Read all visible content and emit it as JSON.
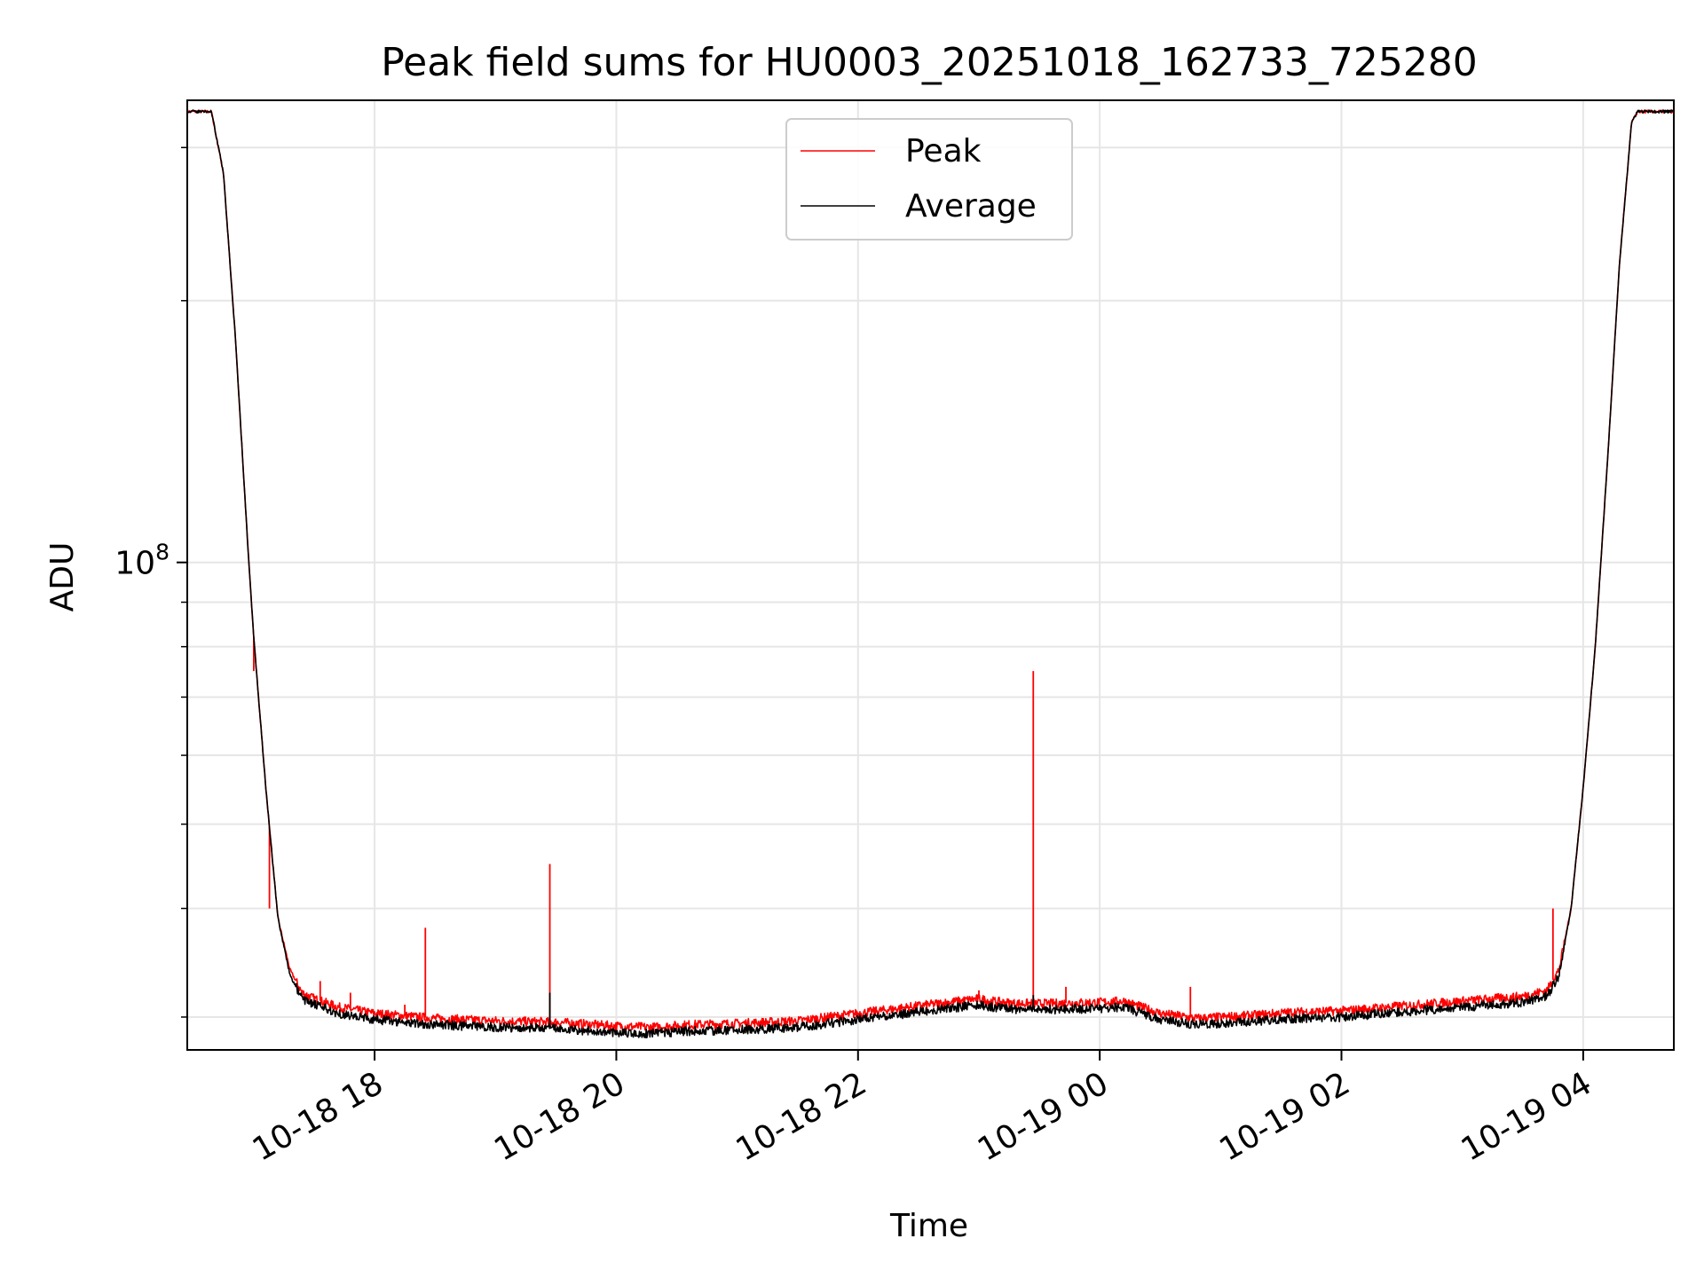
{
  "chart_data": {
    "type": "line",
    "title": "Peak field sums for HU0003_20251018_162733_725280",
    "xlabel": "Time",
    "ylabel": "ADU",
    "x_unit": "hours since 2025-10-18 00:00",
    "xlim": [
      16.45,
      28.75
    ],
    "ylim": [
      27500000,
      340000000
    ],
    "yscale": "log",
    "y_major_ticks": [
      {
        "value": 100000000,
        "base": "10",
        "exponent": "8"
      }
    ],
    "y_minor_ticks": [
      30000000,
      40000000,
      50000000,
      60000000,
      70000000,
      80000000,
      90000000,
      200000000,
      300000000
    ],
    "x_ticks": [
      {
        "value": 18,
        "label": "10-18 18"
      },
      {
        "value": 20,
        "label": "10-18 20"
      },
      {
        "value": 22,
        "label": "10-18 22"
      },
      {
        "value": 24,
        "label": "10-19 00"
      },
      {
        "value": 26,
        "label": "10-19 02"
      },
      {
        "value": 28,
        "label": "10-19 04"
      }
    ],
    "grid": true,
    "legend_position": "top-center",
    "series": [
      {
        "name": "Peak",
        "color": "#ff0000",
        "x": [
          16.45,
          16.65,
          16.75,
          16.85,
          16.95,
          17.0,
          17.1,
          17.2,
          17.3,
          17.4,
          17.5,
          17.7,
          18.0,
          18.5,
          19.0,
          19.5,
          20.0,
          20.3,
          20.6,
          21.0,
          21.5,
          22.0,
          22.5,
          23.0,
          23.1,
          23.3,
          23.6,
          24.0,
          24.2,
          24.5,
          24.8,
          25.2,
          25.6,
          26.0,
          26.5,
          27.0,
          27.5,
          27.7,
          27.8,
          27.9,
          28.0,
          28.1,
          28.2,
          28.3,
          28.4,
          28.45,
          28.75
        ],
        "y": [
          330000000,
          330000000,
          280000000,
          180000000,
          105000000,
          82000000,
          55000000,
          39000000,
          34000000,
          32000000,
          31500000,
          30800000,
          30300000,
          29900000,
          29700000,
          29600000,
          29300000,
          29200000,
          29400000,
          29500000,
          29700000,
          30300000,
          30900000,
          31500000,
          31300000,
          31100000,
          31100000,
          31200000,
          31300000,
          30300000,
          29900000,
          30100000,
          30400000,
          30500000,
          30900000,
          31300000,
          31700000,
          32200000,
          34000000,
          40000000,
          55000000,
          80000000,
          130000000,
          220000000,
          320000000,
          330000000,
          330000000
        ],
        "spikes": [
          {
            "x": 17.0,
            "y": 75000000
          },
          {
            "x": 17.13,
            "y": 40000000
          },
          {
            "x": 17.55,
            "y": 33000000
          },
          {
            "x": 17.8,
            "y": 32000000
          },
          {
            "x": 18.25,
            "y": 31000000
          },
          {
            "x": 18.42,
            "y": 38000000
          },
          {
            "x": 19.45,
            "y": 45000000
          },
          {
            "x": 23.0,
            "y": 32200000
          },
          {
            "x": 23.45,
            "y": 75000000
          },
          {
            "x": 23.72,
            "y": 32500000
          },
          {
            "x": 24.75,
            "y": 32500000
          },
          {
            "x": 27.75,
            "y": 40000000
          }
        ]
      },
      {
        "name": "Average",
        "color": "#000000",
        "x": [
          16.45,
          16.65,
          16.75,
          16.85,
          16.95,
          17.0,
          17.1,
          17.2,
          17.3,
          17.4,
          17.5,
          17.7,
          18.0,
          18.5,
          19.0,
          19.5,
          20.0,
          20.3,
          20.6,
          21.0,
          21.5,
          22.0,
          22.5,
          23.0,
          23.1,
          23.3,
          23.6,
          24.0,
          24.2,
          24.5,
          24.8,
          25.2,
          25.6,
          26.0,
          26.5,
          27.0,
          27.5,
          27.7,
          27.8,
          27.9,
          28.0,
          28.1,
          28.2,
          28.3,
          28.4,
          28.45,
          28.75
        ],
        "y": [
          330000000,
          330000000,
          280000000,
          180000000,
          105000000,
          82000000,
          55000000,
          39000000,
          33500000,
          31500000,
          31000000,
          30300000,
          29800000,
          29400000,
          29200000,
          29100000,
          28800000,
          28700000,
          28900000,
          29000000,
          29200000,
          29800000,
          30400000,
          31000000,
          30800000,
          30600000,
          30600000,
          30700000,
          30800000,
          29800000,
          29400000,
          29600000,
          29900000,
          30000000,
          30400000,
          30800000,
          31200000,
          31700000,
          33500000,
          40000000,
          55000000,
          80000000,
          130000000,
          220000000,
          320000000,
          330000000,
          330000000
        ],
        "spikes": [
          {
            "x": 19.45,
            "y": 32000000
          },
          {
            "x": 23.45,
            "y": 31800000
          }
        ]
      }
    ]
  }
}
